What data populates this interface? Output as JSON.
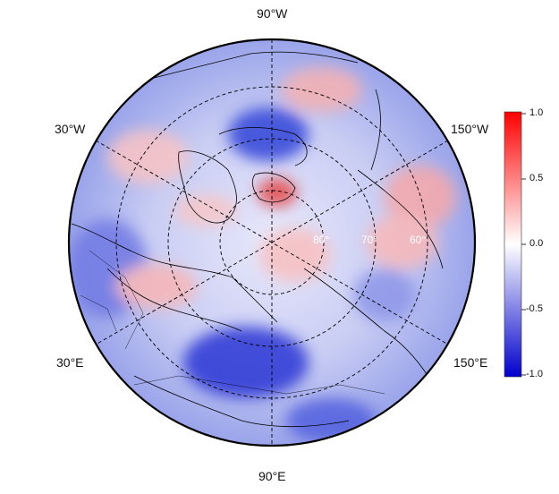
{
  "map": {
    "projection": "north-polar-stereographic",
    "longitude_labels": {
      "top": "90°W",
      "upper_left": "30°W",
      "upper_right": "150°W",
      "lower_left": "30°E",
      "lower_right": "150°E",
      "bottom": "90°E"
    },
    "latitude_labels": [
      "80°",
      "70°",
      "60°"
    ],
    "colormap": {
      "min_color": "#0000cc",
      "mid_color": "#ffffff",
      "max_color": "#ff0000",
      "ticks": [
        "1.0",
        "0.5",
        "0.0",
        "-0.5",
        "-1.0"
      ],
      "range": [
        -1.0,
        1.0
      ]
    },
    "graticule": "dashed",
    "coastlines": true,
    "country_borders": true
  }
}
